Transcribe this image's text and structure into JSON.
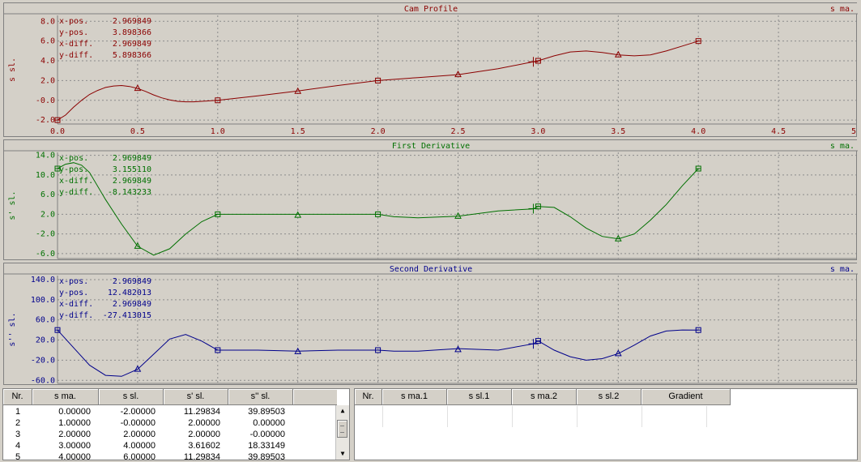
{
  "charts": [
    {
      "key": "cam",
      "title": "Cam Profile",
      "ylabel": "s sl.",
      "unit": "s ma.",
      "color": "#8b0000",
      "ytick_labels": [
        "8.0",
        "6.0",
        "4.0",
        "2.0",
        "-0.0",
        "-2.0"
      ],
      "ytick_values": [
        8,
        6,
        4,
        2,
        0,
        -2
      ],
      "ylim": [
        -2.4,
        8.6
      ],
      "xtick_labels": [
        "0.0",
        "0.5",
        "1.0",
        "1.5",
        "2.0",
        "2.5",
        "3.0",
        "3.5",
        "4.0",
        "4.5",
        "5.0"
      ],
      "readout": [
        {
          "label": "x-pos.",
          "value": "2.969849"
        },
        {
          "label": "y-pos.",
          "value": "3.898366"
        },
        {
          "label": "x-diff.",
          "value": "2.969849"
        },
        {
          "label": "y-diff.",
          "value": "5.898366"
        }
      ],
      "curve_x": [
        0,
        0.05,
        0.1,
        0.15,
        0.2,
        0.25,
        0.3,
        0.35,
        0.4,
        0.45,
        0.5,
        0.55,
        0.6,
        0.65,
        0.7,
        0.75,
        0.8,
        0.85,
        0.9,
        0.95,
        1.0,
        1.25,
        1.5,
        1.75,
        2.0,
        2.25,
        2.5,
        2.75,
        3.0,
        3.1,
        3.2,
        3.3,
        3.4,
        3.5,
        3.6,
        3.7,
        3.8,
        3.9,
        4.0
      ],
      "curve_y": [
        -2.0,
        -1.5,
        -0.7,
        0.0,
        0.6,
        1.0,
        1.3,
        1.45,
        1.5,
        1.4,
        1.2,
        0.9,
        0.55,
        0.25,
        0.05,
        -0.1,
        -0.15,
        -0.15,
        -0.1,
        -0.05,
        0.0,
        0.45,
        0.95,
        1.5,
        2.0,
        2.3,
        2.6,
        3.2,
        4.0,
        4.5,
        4.9,
        5.0,
        4.85,
        4.6,
        4.5,
        4.6,
        5.0,
        5.5,
        6.0
      ],
      "squares": [
        [
          0,
          -2
        ],
        [
          1,
          0
        ],
        [
          2,
          2
        ],
        [
          3,
          4
        ],
        [
          4,
          6
        ]
      ],
      "triangles": [
        [
          0.5,
          1.2
        ],
        [
          1.5,
          0.9
        ],
        [
          2.5,
          2.6
        ],
        [
          3.5,
          4.6
        ]
      ],
      "cursor": [
        2.97,
        3.9
      ]
    },
    {
      "key": "first",
      "title": "First Derivative",
      "ylabel": "s' sl.",
      "unit": "s ma.",
      "color": "#007000",
      "ytick_labels": [
        "14.0",
        "10.0",
        "6.0",
        "2.0",
        "-2.0",
        "-6.0"
      ],
      "ytick_values": [
        14,
        10,
        6,
        2,
        -2,
        -6
      ],
      "ylim": [
        -7.0,
        14.6
      ],
      "readout": [
        {
          "label": "x-pos.",
          "value": "2.969849"
        },
        {
          "label": "y-pos.",
          "value": "3.155110"
        },
        {
          "label": "x-diff.",
          "value": "2.969849"
        },
        {
          "label": "y-diff.",
          "value": "-8.143233"
        }
      ],
      "curve_x": [
        0,
        0.05,
        0.1,
        0.15,
        0.2,
        0.3,
        0.4,
        0.5,
        0.6,
        0.7,
        0.8,
        0.9,
        1.0,
        1.25,
        1.5,
        1.75,
        2.0,
        2.1,
        2.25,
        2.5,
        2.75,
        2.97,
        3.0,
        3.1,
        3.2,
        3.3,
        3.4,
        3.5,
        3.6,
        3.7,
        3.8,
        3.9,
        4.0
      ],
      "curve_y": [
        11.3,
        12.2,
        12.5,
        12.0,
        10.5,
        5.0,
        0.0,
        -4.5,
        -6.3,
        -5.0,
        -2.0,
        0.5,
        2.0,
        2.0,
        2.0,
        2.0,
        2.0,
        1.5,
        1.3,
        1.6,
        2.7,
        3.1,
        3.6,
        3.4,
        1.5,
        -0.8,
        -2.5,
        -3.0,
        -2.0,
        0.8,
        4.0,
        7.8,
        11.3
      ],
      "squares": [
        [
          0,
          11.3
        ],
        [
          1,
          2
        ],
        [
          2,
          2
        ],
        [
          3,
          3.6
        ],
        [
          4,
          11.3
        ]
      ],
      "triangles": [
        [
          0.5,
          -4.5
        ],
        [
          1.5,
          1.8
        ],
        [
          2.5,
          1.6
        ],
        [
          3.5,
          -3.0
        ]
      ],
      "cursor": [
        2.97,
        3.15
      ]
    },
    {
      "key": "second",
      "title": "Second Derivative",
      "ylabel": "s'' sl.",
      "unit": "s ma.",
      "color": "#00008b",
      "ytick_labels": [
        "140.0",
        "100.0",
        "60.0",
        "20.0",
        "-20.0",
        "-60.0"
      ],
      "ytick_values": [
        140,
        100,
        60,
        20,
        -20,
        -60
      ],
      "ylim": [
        -66,
        148
      ],
      "readout": [
        {
          "label": "x-pos.",
          "value": "2.969849"
        },
        {
          "label": "y-pos.",
          "value": "12.482013"
        },
        {
          "label": "x-diff.",
          "value": "2.969849"
        },
        {
          "label": "y-diff.",
          "value": "-27.413015"
        }
      ],
      "curve_x": [
        0,
        0.1,
        0.2,
        0.3,
        0.4,
        0.5,
        0.6,
        0.7,
        0.8,
        0.9,
        1.0,
        1.25,
        1.5,
        1.75,
        2.0,
        2.1,
        2.25,
        2.5,
        2.75,
        2.97,
        3.0,
        3.1,
        3.2,
        3.3,
        3.4,
        3.5,
        3.6,
        3.7,
        3.8,
        3.9,
        4.0
      ],
      "curve_y": [
        39.9,
        5,
        -30,
        -50,
        -52,
        -38,
        -8,
        22,
        31,
        18,
        0,
        0,
        -2,
        0,
        0,
        -2,
        -2,
        3,
        0,
        12.5,
        18.3,
        0,
        -13,
        -20,
        -17,
        -7,
        10,
        28,
        38,
        40,
        39.9
      ],
      "squares": [
        [
          0,
          39.9
        ],
        [
          1,
          0
        ],
        [
          2,
          0
        ],
        [
          3,
          18.3
        ],
        [
          4,
          39.9
        ]
      ],
      "triangles": [
        [
          0.5,
          -38
        ],
        [
          1.5,
          -3
        ],
        [
          2.5,
          1
        ],
        [
          3.5,
          -7
        ]
      ],
      "cursor": [
        2.97,
        12.5
      ]
    }
  ],
  "table_left": {
    "headers": [
      "Nr.",
      "s ma.",
      "s sl.",
      "s' sl.",
      "s'' sl."
    ],
    "rows": [
      [
        "1",
        "0.00000",
        "-2.00000",
        "11.29834",
        "39.89503"
      ],
      [
        "2",
        "1.00000",
        "-0.00000",
        "2.00000",
        "0.00000"
      ],
      [
        "3",
        "2.00000",
        "2.00000",
        "2.00000",
        "-0.00000"
      ],
      [
        "4",
        "3.00000",
        "4.00000",
        "3.61602",
        "18.33149"
      ],
      [
        "5",
        "4.00000",
        "6.00000",
        "11.29834",
        "39.89503"
      ]
    ]
  },
  "table_right": {
    "headers": [
      "Nr.",
      "s ma.1",
      "s sl.1",
      "s ma.2",
      "s sl.2",
      "Gradient"
    ]
  },
  "icons": {
    "scroll_up": "▲",
    "scroll_down": "▼"
  }
}
